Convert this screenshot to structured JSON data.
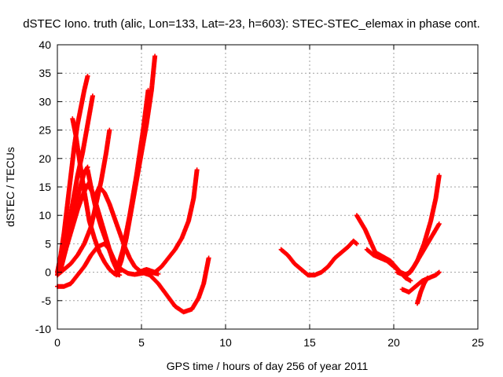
{
  "chart_data": {
    "type": "scatter",
    "title": "dSTEC Iono. truth (alic, Lon=133, Lat=-23, h=603): STEC-STEC_elemax in phase cont.",
    "xlabel": "GPS time / hours of day 256 of year 2011",
    "ylabel": "dSTEC  / TECUs",
    "xlim": [
      0,
      25
    ],
    "ylim": [
      -10,
      40
    ],
    "xticks": [
      0,
      5,
      10,
      15,
      20,
      25
    ],
    "yticks": [
      -10,
      -5,
      0,
      5,
      10,
      15,
      20,
      25,
      30,
      35,
      40
    ],
    "grid": true,
    "marker": "plus",
    "color": "#ff0000",
    "series": [
      {
        "x": [
          0.0,
          0.2,
          0.4,
          0.6,
          0.8,
          1.0,
          1.2,
          1.4,
          1.6,
          1.8
        ],
        "y": [
          0,
          3,
          7,
          12,
          17,
          22,
          26,
          29,
          32,
          34.5
        ]
      },
      {
        "x": [
          0.0,
          0.3,
          0.6,
          0.9,
          1.2,
          1.5,
          1.8,
          2.1
        ],
        "y": [
          -0.5,
          3,
          7,
          12,
          17,
          21,
          26,
          31
        ]
      },
      {
        "x": [
          0.9,
          1.1,
          1.3,
          1.5,
          1.7,
          1.9,
          2.2,
          2.5,
          2.8,
          3.1,
          3.4,
          3.7
        ],
        "y": [
          27,
          24,
          20,
          16,
          12.5,
          9,
          6,
          3.5,
          1.8,
          0.5,
          -0.3,
          -0.5
        ]
      },
      {
        "x": [
          0.0,
          0.3,
          0.6,
          0.9,
          1.2,
          1.5,
          1.8,
          2.1,
          2.4,
          2.7,
          3.0,
          3.3,
          3.6
        ],
        "y": [
          0,
          2,
          5,
          8,
          11,
          13.5,
          15.5,
          14,
          11,
          8,
          5,
          2,
          0
        ]
      },
      {
        "x": [
          0.0,
          0.4,
          0.8,
          1.2,
          1.6,
          2.0,
          2.3,
          2.6,
          2.9,
          3.1
        ],
        "y": [
          -0.5,
          0.5,
          1.5,
          3,
          5,
          8,
          12,
          16,
          21,
          25
        ]
      },
      {
        "x": [
          0.2,
          0.5,
          0.8,
          1.1,
          1.4,
          1.6,
          1.8
        ],
        "y": [
          0.5,
          4,
          8,
          12,
          15.5,
          17.5,
          18.5
        ]
      },
      {
        "x": [
          1.8,
          2.0,
          2.3,
          2.6,
          2.9,
          3.2,
          3.5,
          3.8,
          4.2,
          4.6,
          5.0,
          5.5,
          6.0
        ],
        "y": [
          18,
          15,
          11,
          8,
          5.5,
          3,
          1.5,
          0.5,
          -0.2,
          -0.4,
          -0.2,
          0,
          -0.3
        ]
      },
      {
        "x": [
          2.2,
          2.5,
          2.8,
          3.1,
          3.4,
          3.7,
          4.0,
          4.3,
          4.6,
          5.0
        ],
        "y": [
          13,
          15,
          14,
          12,
          9.5,
          7,
          4.5,
          2.5,
          1,
          0
        ]
      },
      {
        "x": [
          3.5,
          3.8,
          4.1,
          4.4,
          4.7,
          5.0,
          5.3,
          5.6,
          5.8
        ],
        "y": [
          -0.5,
          2,
          6,
          11,
          16,
          21,
          26,
          32,
          38
        ]
      },
      {
        "x": [
          3.5,
          3.9,
          4.3,
          4.7,
          5.1,
          5.4
        ],
        "y": [
          0,
          4,
          10,
          17,
          25,
          32
        ]
      },
      {
        "x": [
          0.0,
          0.4,
          0.8,
          1.2,
          1.6,
          2.0,
          2.4,
          2.8,
          3.1,
          3.4,
          3.7
        ],
        "y": [
          -2.5,
          -2.5,
          -2,
          -0.5,
          1,
          3,
          4.5,
          5,
          4,
          2,
          0
        ]
      },
      {
        "x": [
          5.0,
          5.5,
          6.0,
          6.5,
          7.0,
          7.5,
          8.0,
          8.4,
          8.7,
          9.0
        ],
        "y": [
          0,
          -0.5,
          -2,
          -4,
          -6,
          -7,
          -6.5,
          -4.5,
          -2,
          2.5
        ]
      },
      {
        "x": [
          4.8,
          5.3,
          5.8,
          6.2,
          6.6,
          7.0,
          7.4,
          7.8,
          8.1,
          8.3
        ],
        "y": [
          0,
          0.5,
          0,
          1,
          2.5,
          4,
          6,
          9,
          13,
          18
        ]
      },
      {
        "x": [
          13.3,
          13.7,
          14.1,
          14.5,
          14.9,
          15.3,
          15.7,
          16.1,
          16.5,
          16.9,
          17.3,
          17.6,
          17.8
        ],
        "y": [
          4,
          3,
          1.5,
          0.5,
          -0.5,
          -0.5,
          0,
          1,
          2.5,
          3.5,
          4.5,
          5.5,
          5
        ]
      },
      {
        "x": [
          17.8,
          18.0,
          18.3,
          18.6,
          18.9,
          19.2,
          19.5,
          19.8,
          20.1,
          20.4,
          20.7,
          21.0
        ],
        "y": [
          10,
          9,
          7.5,
          5.5,
          3.5,
          3,
          2.5,
          2,
          1,
          0,
          -1,
          -1.5
        ]
      },
      {
        "x": [
          20.2,
          20.6,
          21.0,
          21.4,
          21.8,
          22.2,
          22.5,
          22.7
        ],
        "y": [
          0,
          -0.5,
          0,
          2,
          5,
          9,
          13,
          17
        ]
      },
      {
        "x": [
          18.4,
          18.8,
          19.2,
          19.6,
          20.0,
          20.4,
          20.8,
          21.2,
          21.6,
          22.0,
          22.4,
          22.7
        ],
        "y": [
          4,
          3,
          2.5,
          2,
          1,
          0,
          -0.5,
          1,
          3,
          5,
          7,
          8.5
        ]
      },
      {
        "x": [
          20.5,
          20.9,
          21.3,
          21.7,
          22.1,
          22.5,
          22.7
        ],
        "y": [
          -3,
          -3.5,
          -2.5,
          -1.5,
          -1,
          -0.5,
          0
        ]
      },
      {
        "x": [
          21.4,
          21.6,
          21.8,
          22.0
        ],
        "y": [
          -5.5,
          -3.5,
          -2,
          -1
        ]
      }
    ]
  }
}
